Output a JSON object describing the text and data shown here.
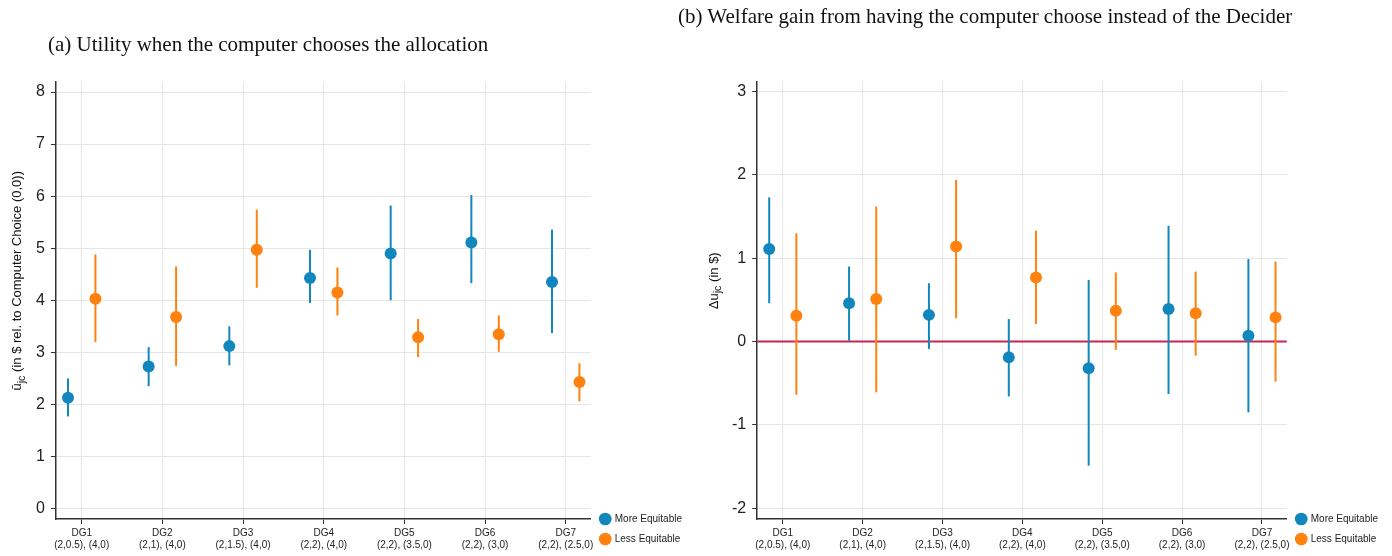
{
  "chart_data": [
    {
      "type": "scatter",
      "title": "(a) Utility when the computer chooses the allocation",
      "ylabel": "ū$_{jc}$ (in $ rel. to Computer Choice (0,0))",
      "categories": [
        "DG1\n(2,0.5), (4,0)",
        "DG2\n(2,1), (4,0)",
        "DG3\n(2,1.5), (4,0)",
        "DG4\n(2,2), (4,0)",
        "DG5\n(2,2), (3.5,0)",
        "DG6\n(2,2), (3,0)",
        "DG7\n(2,2), (2.5,0)"
      ],
      "series": [
        {
          "name": "More Equitable",
          "color": "#1287bd",
          "values": [
            2.13,
            2.73,
            3.12,
            4.43,
            4.9,
            5.11,
            4.35
          ],
          "errors": [
            [
              1.77,
              2.5
            ],
            [
              2.35,
              3.1
            ],
            [
              2.75,
              3.5
            ],
            [
              3.95,
              4.97
            ],
            [
              4.0,
              5.82
            ],
            [
              4.33,
              6.02
            ],
            [
              3.37,
              5.36
            ]
          ]
        },
        {
          "name": "Less Equitable",
          "color": "#ff820f",
          "values": [
            4.03,
            3.68,
            4.97,
            4.15,
            3.29,
            3.35,
            2.43
          ],
          "errors": [
            [
              3.2,
              4.88
            ],
            [
              2.74,
              4.65
            ],
            [
              4.24,
              5.74
            ],
            [
              3.71,
              4.63
            ],
            [
              2.91,
              3.64
            ],
            [
              3.01,
              3.71
            ],
            [
              2.06,
              2.79
            ]
          ]
        }
      ],
      "ylim": [
        -0.2,
        8.2
      ],
      "yticks": [
        0,
        1,
        2,
        3,
        4,
        5,
        6,
        7,
        8
      ],
      "grid": true,
      "legend": "bottom right",
      "marker": "circle"
    },
    {
      "type": "scatter",
      "title": "(b) Welfare gain from having the computer choose instead of the Decider",
      "ylabel": "Δu$_{jc}$ (in $)",
      "categories": [
        "DG1\n(2,0.5), (4,0)",
        "DG2\n(2,1), (4,0)",
        "DG3\n(2,1.5), (4,0)",
        "DG4\n(2,2), (4,0)",
        "DG5\n(2,2), (3.5,0)",
        "DG6\n(2,2), (3,0)",
        "DG7\n(2,2), (2.5,0)"
      ],
      "series": [
        {
          "name": "More Equitable",
          "color": "#1287bd",
          "values": [
            1.11,
            0.46,
            0.32,
            -0.19,
            -0.32,
            0.39,
            0.07
          ],
          "errors": [
            [
              0.46,
              1.73
            ],
            [
              0.01,
              0.9
            ],
            [
              -0.09,
              0.7
            ],
            [
              -0.66,
              0.27
            ],
            [
              -1.49,
              0.74
            ],
            [
              -0.63,
              1.39
            ],
            [
              -0.85,
              0.99
            ]
          ]
        },
        {
          "name": "Less Equitable",
          "color": "#ff820f",
          "values": [
            0.31,
            0.51,
            1.14,
            0.77,
            0.37,
            0.34,
            0.29
          ],
          "errors": [
            [
              -0.64,
              1.3
            ],
            [
              -0.61,
              1.62
            ],
            [
              0.28,
              1.94
            ],
            [
              0.21,
              1.33
            ],
            [
              -0.1,
              0.83
            ],
            [
              -0.17,
              0.84
            ],
            [
              -0.48,
              0.96
            ]
          ]
        }
      ],
      "ylim": [
        -2.13,
        3.12
      ],
      "yticks": [
        -2,
        -1,
        0,
        1,
        2,
        3
      ],
      "ref_lines": [
        {
          "axis": "y",
          "value": 0,
          "color": "#c8254f"
        }
      ],
      "grid": true,
      "legend": "bottom right",
      "marker": "circle"
    }
  ]
}
